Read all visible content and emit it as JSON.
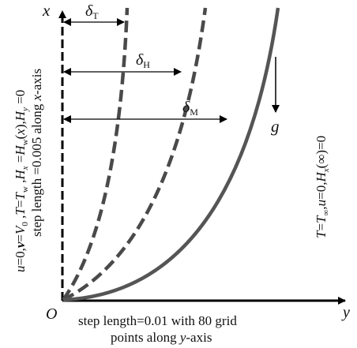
{
  "axes": {
    "origin_label": "O",
    "x_label": "x",
    "y_label": "y"
  },
  "boundary_layers": [
    {
      "symbol": "δ",
      "subscript": "T",
      "line_style": "dashed"
    },
    {
      "symbol": "δ",
      "subscript": "H",
      "line_style": "dashed"
    },
    {
      "symbol": "δ",
      "subscript": "M",
      "line_style": "solid"
    }
  ],
  "gravity": {
    "label": "g"
  },
  "wall_condition": {
    "text": "u=0,v=V0 ,T=Tw ,Hx =Hw(x),Hy=0",
    "step_note": "step length =0.005 along x-axis"
  },
  "free_stream_condition": {
    "text": "T=T∞,u=0,Hx(∞)=0"
  },
  "bottom_note": {
    "line1": "step length=0.01 with 80 grid",
    "line2": "points along y-axis"
  },
  "colors": {
    "axis": "#000000",
    "curve": "#4a4a4a",
    "text": "#111111"
  }
}
